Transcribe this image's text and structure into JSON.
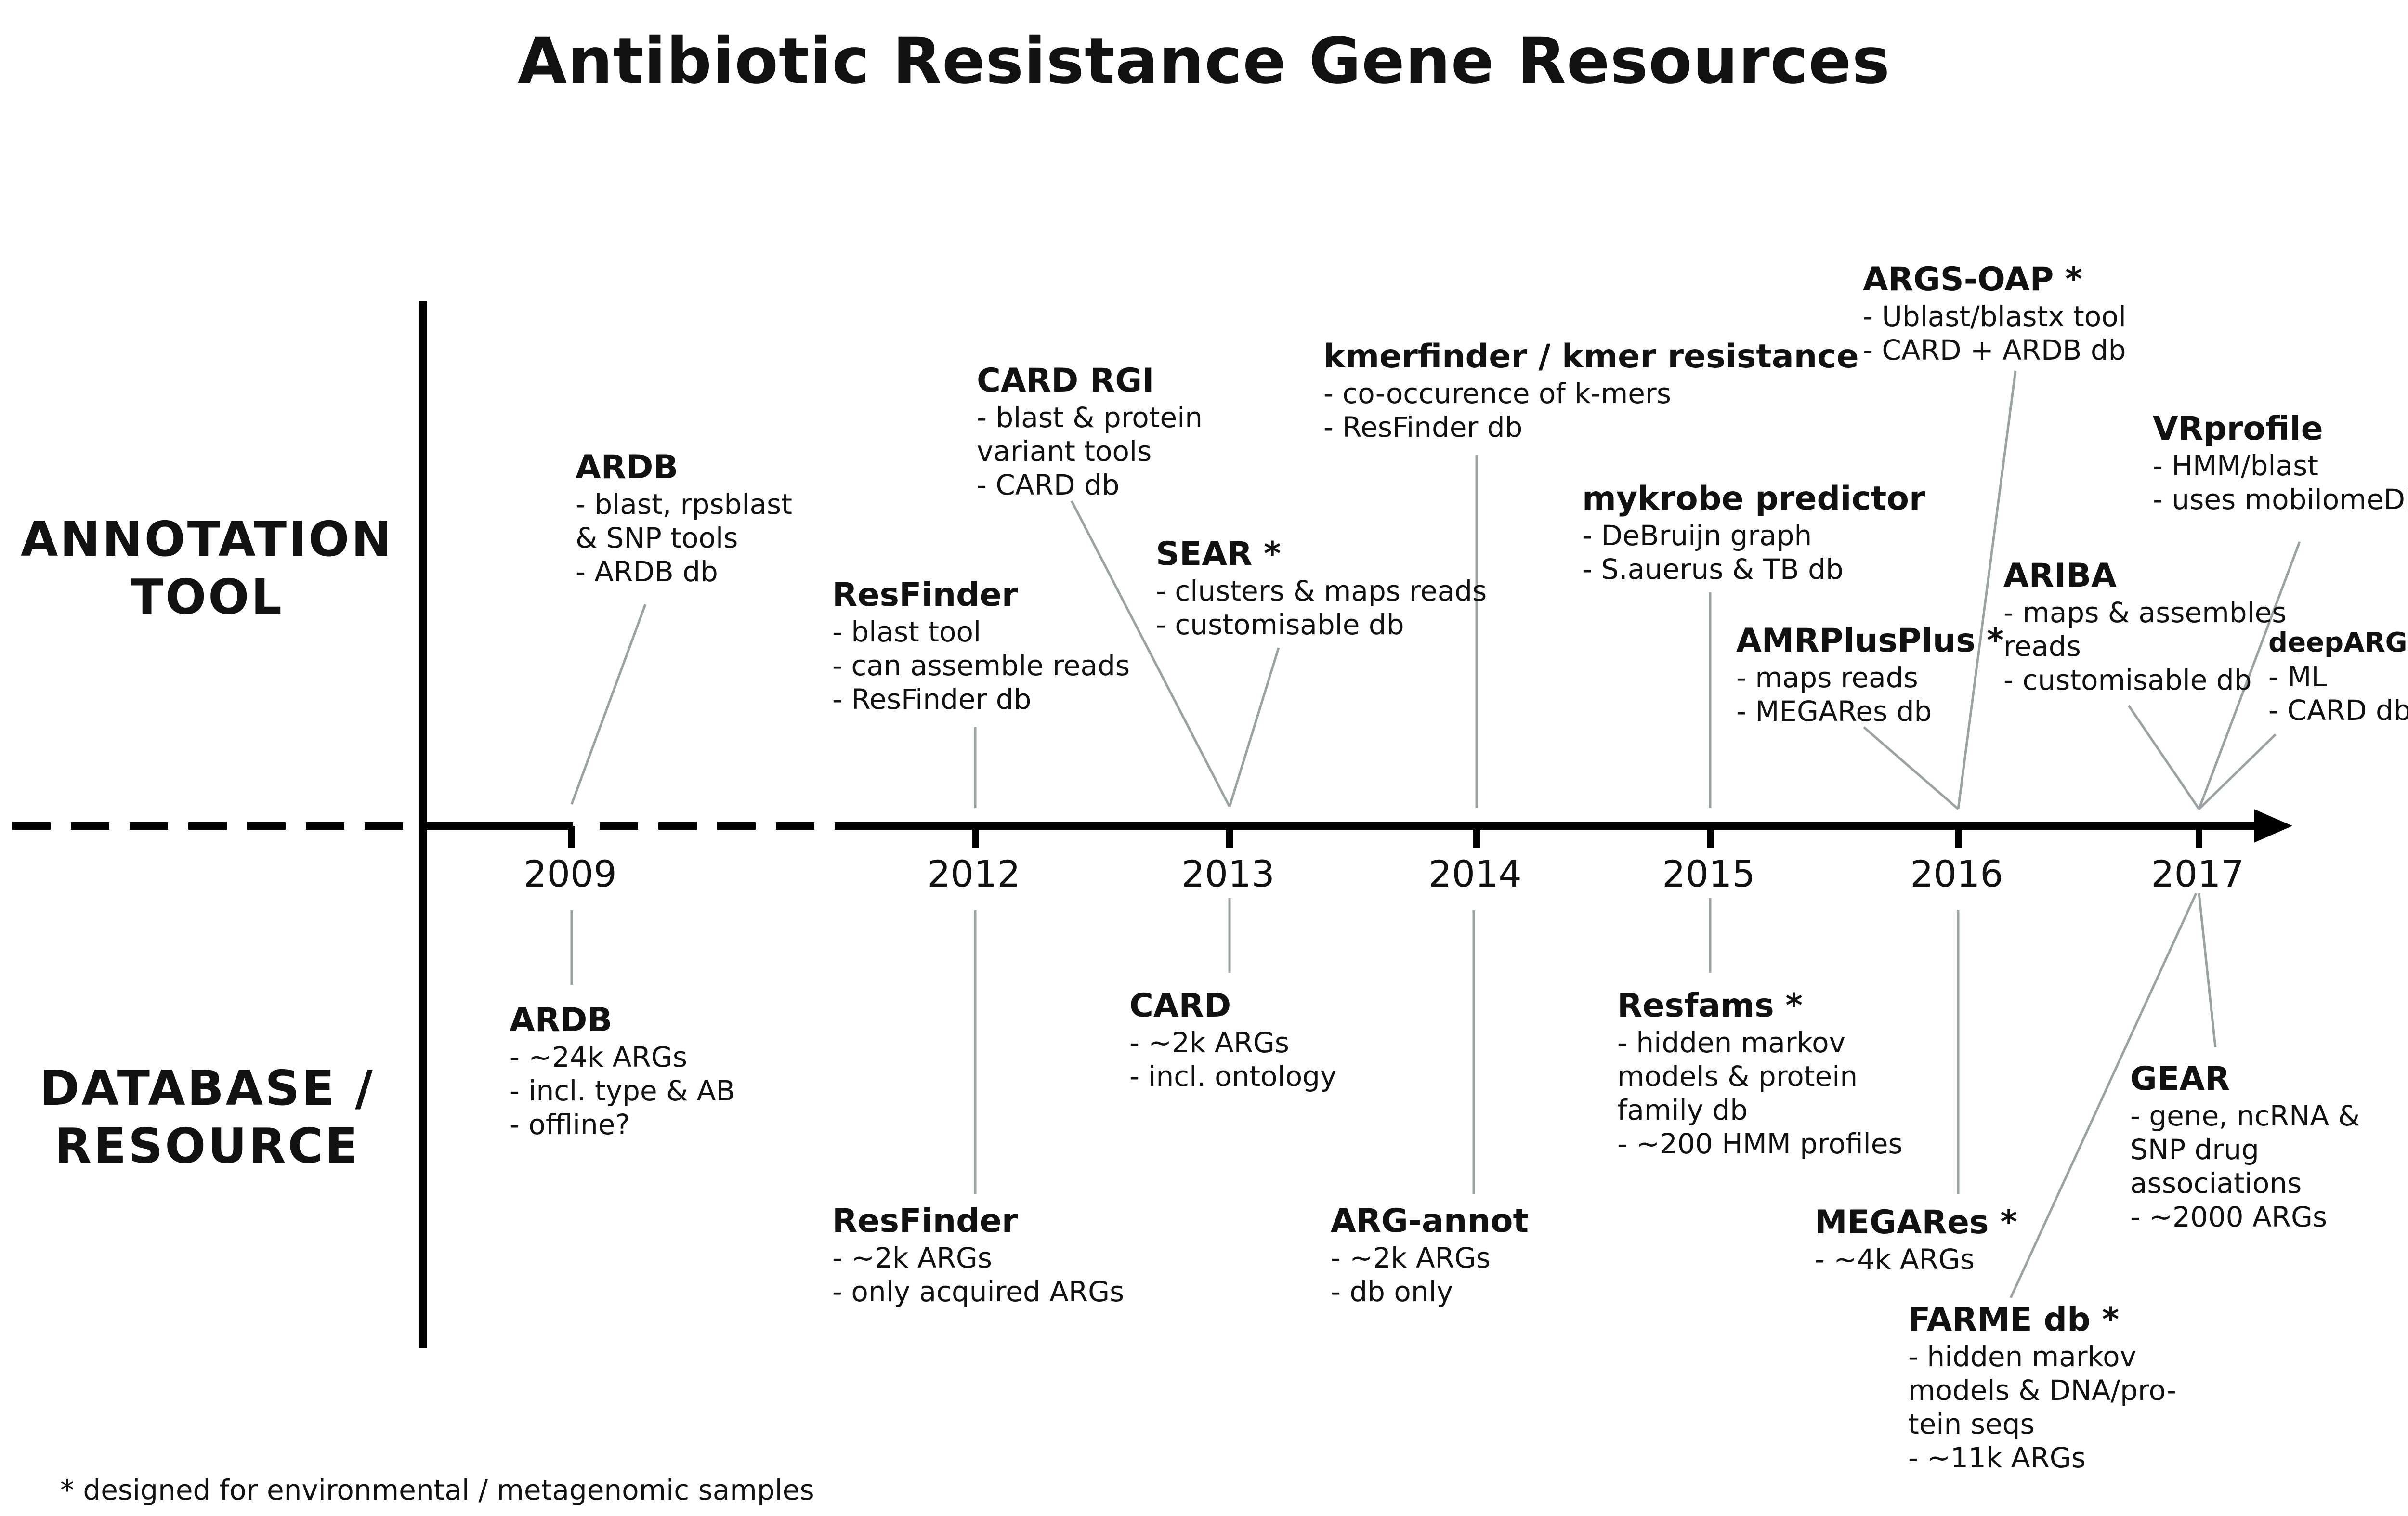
{
  "title": "Antibiotic Resistance Gene Resources",
  "labels": {
    "annotation": [
      "ANNOTATION",
      "TOOL"
    ],
    "database": [
      "DATABASE /",
      "RESOURCE"
    ]
  },
  "footnote": "* designed for environmental / metagenomic samples",
  "colors": {
    "axis": "#000000",
    "connector": "#9aa3a3",
    "text": "#111111"
  },
  "years": [
    "2009",
    "2012",
    "2013",
    "2014",
    "2015",
    "2016",
    "2017"
  ],
  "tools": [
    {
      "id": "ardb-tool",
      "year": "2009",
      "name": "ARDB",
      "lines": [
        "- blast, rpsblast",
        "& SNP tools",
        "- ARDB db"
      ]
    },
    {
      "id": "resfinder-tool",
      "year": "2012",
      "name": "ResFinder",
      "lines": [
        "- blast tool",
        "- can assemble reads",
        "- ResFinder db"
      ]
    },
    {
      "id": "card-rgi",
      "year": "2012",
      "name": "CARD RGI",
      "lines": [
        "- blast & protein",
        "variant tools",
        "- CARD db"
      ]
    },
    {
      "id": "sear",
      "year": "2013",
      "name": "SEAR *",
      "lines": [
        "- clusters & maps reads",
        "- customisable db"
      ]
    },
    {
      "id": "kmerfinder",
      "year": "2014",
      "name": "kmerfinder / kmer resistance",
      "lines": [
        "- co-occurence of k-mers",
        "- ResFinder db"
      ]
    },
    {
      "id": "mykrobe",
      "year": "2015",
      "name": "mykrobe predictor",
      "lines": [
        "- DeBruijn graph",
        "- S.auerus & TB db"
      ]
    },
    {
      "id": "amrplusplus",
      "year": "2016",
      "name": "AMRPlusPlus *",
      "lines": [
        "- maps reads",
        "- MEGARes db"
      ]
    },
    {
      "id": "args-oap",
      "year": "2016",
      "name": "ARGS-OAP *",
      "lines": [
        "- Ublast/blastx tool",
        "- CARD + ARDB db"
      ]
    },
    {
      "id": "ariba",
      "year": "2017",
      "name": "ARIBA",
      "lines": [
        "- maps & assembles",
        "reads",
        "- customisable db"
      ]
    },
    {
      "id": "vrprofile",
      "year": "2017",
      "name": "VRprofile",
      "lines": [
        "- HMM/blast",
        "- uses mobilomeDB"
      ]
    },
    {
      "id": "deeparg",
      "year": "2017",
      "name": "deepARG",
      "lines": [
        "- ML",
        "- CARD db"
      ]
    }
  ],
  "databases": [
    {
      "id": "ardb-db",
      "year": "2009",
      "name": "ARDB",
      "lines": [
        "- ~24k ARGs",
        "- incl. type & AB",
        "- offline?"
      ]
    },
    {
      "id": "resfinder-db",
      "year": "2012",
      "name": "ResFinder",
      "lines": [
        "- ~2k ARGs",
        "- only acquired ARGs"
      ]
    },
    {
      "id": "card-db",
      "year": "2013",
      "name": "CARD",
      "lines": [
        "- ~2k ARGs",
        "- incl. ontology"
      ]
    },
    {
      "id": "arg-annot",
      "year": "2014",
      "name": "ARG-annot",
      "lines": [
        "- ~2k ARGs",
        "- db only"
      ]
    },
    {
      "id": "resfams",
      "year": "2015",
      "name": "Resfams *",
      "lines": [
        "- hidden markov",
        "models & protein",
        "family db",
        "- ~200 HMM profiles"
      ]
    },
    {
      "id": "megares",
      "year": "2016",
      "name": "MEGARes *",
      "lines": [
        "- ~4k ARGs"
      ]
    },
    {
      "id": "farme",
      "year": "2016",
      "name": "FARME db *",
      "lines": [
        "- hidden markov",
        "models & DNA/pro-",
        "tein seqs",
        "- ~11k ARGs"
      ]
    },
    {
      "id": "gear",
      "year": "2017",
      "name": "GEAR",
      "lines": [
        "- gene, ncRNA &",
        "SNP drug",
        "associations",
        "- ~2000 ARGs"
      ]
    }
  ]
}
